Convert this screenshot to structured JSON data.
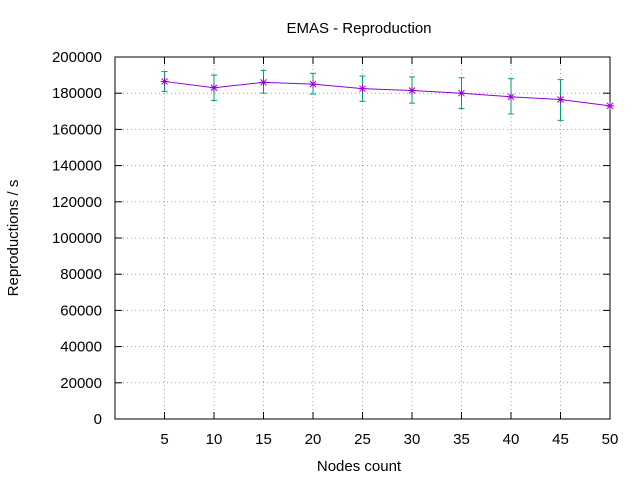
{
  "chart_data": {
    "type": "line",
    "title": "EMAS - Reproduction",
    "xlabel": "Nodes count",
    "ylabel": "Reproductions / s",
    "xlim": [
      0,
      50
    ],
    "ylim": [
      0,
      200000
    ],
    "x_ticks": [
      "5",
      "10",
      "15",
      "20",
      "25",
      "30",
      "35",
      "40",
      "45",
      "50"
    ],
    "y_ticks": [
      "0",
      "20000",
      "40000",
      "60000",
      "80000",
      "100000",
      "120000",
      "140000",
      "160000",
      "180000",
      "200000"
    ],
    "grid": true,
    "series": [
      {
        "x": [
          5,
          10,
          15,
          20,
          25,
          30,
          35,
          40,
          45,
          50
        ],
        "y": [
          186500,
          183000,
          186000,
          185000,
          182500,
          181500,
          180000,
          178000,
          176500,
          173000
        ],
        "error_low": [
          181000,
          176000,
          180000,
          179500,
          175500,
          174500,
          171500,
          168500,
          165000,
          173000
        ],
        "error_high": [
          192000,
          190000,
          192500,
          191000,
          189500,
          189000,
          188500,
          188000,
          187500,
          173000
        ],
        "line_color": "#9400d3",
        "marker_color": "#009e73",
        "marker": "asterisk"
      }
    ]
  }
}
